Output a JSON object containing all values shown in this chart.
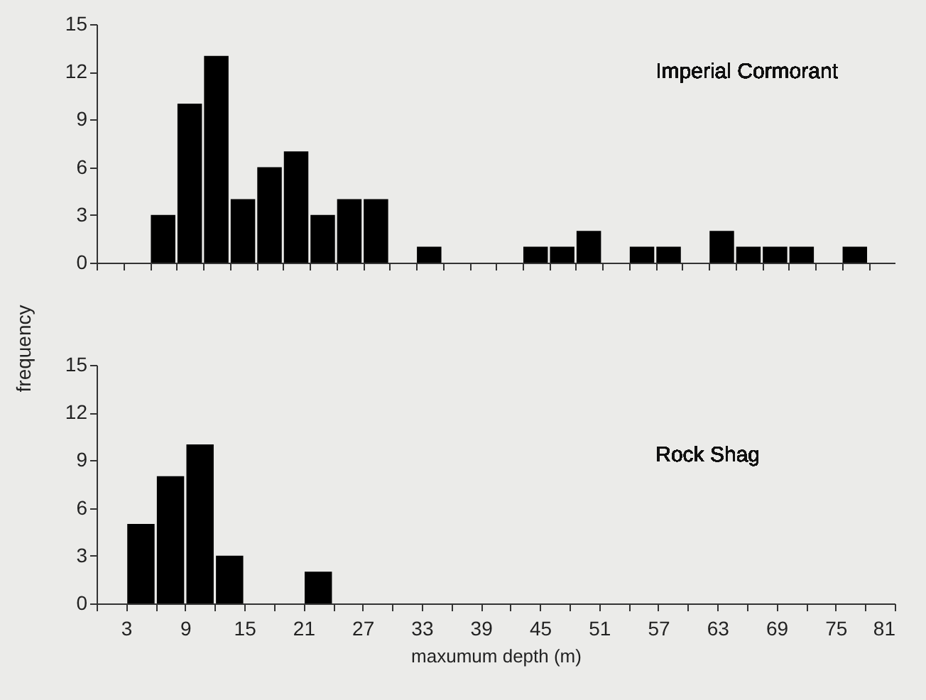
{
  "chart_data": [
    {
      "type": "bar",
      "title": "Imperial Cormorant",
      "ylabel": "frequency",
      "color": "#000000",
      "categories": [
        null,
        null,
        null,
        null,
        null,
        null,
        null,
        null,
        null,
        null,
        null,
        null,
        null,
        null,
        null,
        null,
        null,
        null,
        null,
        null,
        null,
        null,
        null,
        null,
        null,
        null,
        null,
        null,
        null,
        null
      ],
      "values": [
        0,
        0,
        3,
        10,
        13,
        4,
        6,
        7,
        3,
        4,
        4,
        0,
        1,
        0,
        0,
        0,
        1,
        1,
        2,
        0,
        1,
        1,
        0,
        2,
        1,
        1,
        1,
        0,
        1,
        0
      ],
      "ylim": [
        0,
        15
      ],
      "yticks": [
        0,
        3,
        6,
        9,
        12,
        15
      ],
      "tick_labels": "y"
    },
    {
      "type": "histogram",
      "title": "Rock Shag",
      "xlabel": "maxumum depth (m)",
      "color": "#000000",
      "bins": [
        0,
        3,
        6,
        9,
        12,
        15,
        18,
        21,
        24,
        27,
        30,
        33,
        36,
        39,
        42,
        45,
        48,
        51,
        54,
        57,
        60,
        63,
        66,
        69,
        72,
        75,
        78,
        81
      ],
      "values": [
        0,
        5,
        8,
        10,
        3,
        0,
        0,
        2,
        0,
        0,
        0,
        0,
        0,
        0,
        0,
        0,
        0,
        0,
        0,
        0,
        0,
        0,
        0,
        0,
        0,
        0,
        0
      ],
      "xlim": [
        0,
        81
      ],
      "ylim": [
        0,
        15
      ],
      "xticks": [
        {
          "value": 0,
          "label": null
        },
        3,
        {
          "value": 6,
          "label": null
        },
        9,
        {
          "value": 12,
          "label": null
        },
        15,
        {
          "value": 18,
          "label": null
        },
        21,
        {
          "value": 24,
          "label": null
        },
        27,
        {
          "value": 30,
          "label": null
        },
        33,
        {
          "value": 36,
          "label": null
        },
        39,
        {
          "value": 42,
          "label": null
        },
        45,
        {
          "value": 48,
          "label": null
        },
        51,
        {
          "value": 54,
          "label": null
        },
        57,
        {
          "value": 60,
          "label": null
        },
        63,
        {
          "value": 66,
          "label": null
        },
        69,
        {
          "value": 72,
          "label": null
        },
        75,
        {
          "value": 78,
          "label": null
        },
        81
      ],
      "yticks": [
        0,
        3,
        6,
        9,
        12,
        15
      ]
    }
  ]
}
